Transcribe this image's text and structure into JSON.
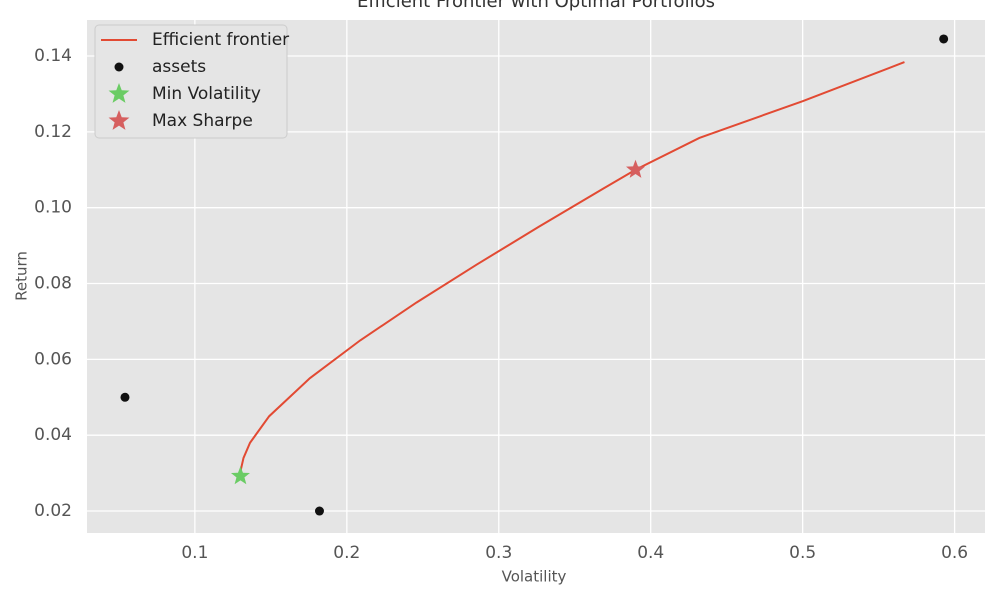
{
  "chart_data": {
    "type": "scatter",
    "title": "Efficient Frontier with Optimal Portfolios",
    "x_label": "Volatility",
    "y_label": "Return",
    "xlim": [
      0.029,
      0.62
    ],
    "ylim": [
      0.0142,
      0.1495
    ],
    "xticks": [
      0.1,
      0.2,
      0.3,
      0.4,
      0.5,
      0.6
    ],
    "yticks": [
      0.02,
      0.04,
      0.06,
      0.08,
      {
        "value": 0.1,
        "label": "0.10"
      },
      0.12,
      0.14
    ],
    "grid": true,
    "legend": "upper left",
    "series": [
      {
        "name": "Efficient frontier",
        "mark": "line",
        "color": "#e24a33",
        "x": [
          0.13,
          0.1303,
          0.132,
          0.1363,
          0.1489,
          0.1756,
          0.2088,
          0.2459,
          0.2855,
          0.3265,
          0.3686,
          0.39,
          0.432,
          0.5,
          0.567
        ],
        "values": [
          0.029,
          0.031,
          0.034,
          0.038,
          0.045,
          0.055,
          0.065,
          0.075,
          0.085,
          0.095,
          0.105,
          0.11,
          0.1184,
          0.1281,
          0.1384
        ]
      },
      {
        "name": "assets",
        "mark": "dot",
        "color": "#111111",
        "x": [
          0.054,
          0.182,
          0.5928
        ],
        "values": [
          0.05,
          0.02,
          0.1445
        ]
      },
      {
        "name": "Min Volatility",
        "mark": "star",
        "color": "#6acc64",
        "x": [
          0.13
        ],
        "values": [
          0.0292
        ]
      },
      {
        "name": "Max Sharpe",
        "mark": "star",
        "color": "#d65f5f",
        "x": [
          0.39
        ],
        "values": [
          0.11
        ]
      }
    ]
  }
}
